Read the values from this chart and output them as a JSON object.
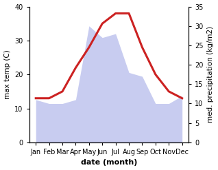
{
  "months": [
    "Jan",
    "Feb",
    "Mar",
    "Apr",
    "May",
    "Jun",
    "Jul",
    "Aug",
    "Sep",
    "Oct",
    "Nov",
    "Dec"
  ],
  "x": [
    0,
    1,
    2,
    3,
    4,
    5,
    6,
    7,
    8,
    9,
    10,
    11
  ],
  "temperature": [
    13,
    13,
    15,
    22,
    28,
    35,
    38,
    38,
    28,
    20,
    15,
    13
  ],
  "precipitation": [
    11,
    10,
    10,
    11,
    30,
    27,
    28,
    18,
    17,
    10,
    10,
    12
  ],
  "temp_color": "#cc2222",
  "precip_fill_color": "#c8ccf0",
  "title": "",
  "xlabel": "date (month)",
  "ylabel_left": "max temp (C)",
  "ylabel_right": "med. precipitation (kg/m2)",
  "ylim_left": [
    0,
    40
  ],
  "ylim_right": [
    0,
    35
  ],
  "yticks_left": [
    0,
    10,
    20,
    30,
    40
  ],
  "yticks_right": [
    0,
    5,
    10,
    15,
    20,
    25,
    30,
    35
  ],
  "bg_color": "#ffffff",
  "temp_linewidth": 2.2,
  "xlabel_fontsize": 8,
  "xlabel_fontweight": "bold",
  "ylabel_fontsize": 7.5,
  "tick_fontsize": 7
}
